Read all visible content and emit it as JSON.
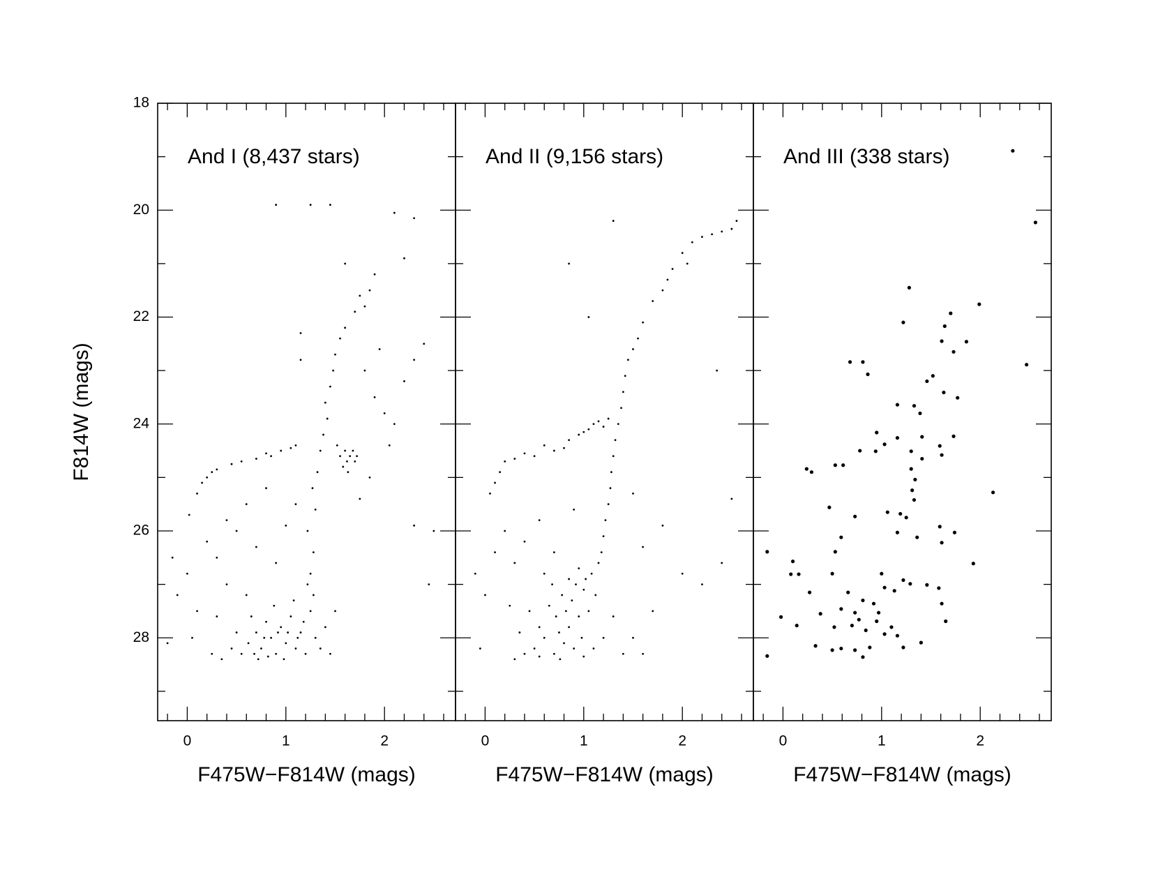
{
  "chart_data": [
    {
      "type": "scatter",
      "title": "And I (8,437 stars)",
      "x_label": "F475W−F814W (mags)",
      "y_label": "F814W (mags)",
      "xlim": [
        -0.3,
        2.72
      ],
      "ylim": [
        18,
        29.55
      ],
      "y_reversed": true,
      "xticks": [
        0,
        1,
        2
      ],
      "xticks_minor": [
        -0.2,
        0.2,
        0.4,
        0.6,
        0.8,
        1.2,
        1.4,
        1.6,
        1.8,
        2.2,
        2.4,
        2.6
      ],
      "yticks": [
        18,
        20,
        22,
        24,
        26,
        28
      ],
      "yticks_minor": [
        19,
        21,
        23,
        25,
        27,
        29
      ],
      "show_ytick_labels": true,
      "color": "#000000",
      "marker_size": 1.4,
      "x": [
        0.55,
        0.62,
        0.7,
        0.75,
        0.8,
        0.85,
        0.9,
        0.95,
        1.0,
        1.05,
        1.1,
        1.15,
        1.2,
        1.25,
        1.3,
        0.65,
        0.72,
        0.88,
        0.98,
        1.08,
        1.18,
        1.35,
        1.4,
        0.5,
        0.45,
        0.35,
        0.3,
        0.92,
        1.02,
        0.78,
        1.12,
        0.68,
        0.82,
        1.28,
        1.22,
        0.6,
        0.4,
        1.45,
        1.5,
        0.25,
        1.25,
        1.28,
        1.22,
        1.3,
        1.27,
        1.32,
        1.35,
        1.38,
        1.42,
        1.4,
        1.45,
        1.48,
        1.5,
        1.55,
        1.6,
        1.7,
        1.8,
        1.85,
        1.9,
        1.75,
        1.55,
        1.6,
        1.62,
        1.65,
        1.58,
        1.68,
        1.7,
        1.52,
        1.63,
        1.72,
        0.1,
        0.15,
        0.2,
        0.25,
        0.3,
        0.45,
        0.55,
        0.7,
        0.8,
        0.85,
        0.95,
        1.05,
        1.1,
        0.02,
        1.8,
        1.9,
        2.0,
        2.1,
        2.2,
        2.3,
        2.4,
        1.95,
        2.05,
        1.85,
        1.75,
        2.3,
        2.5,
        2.45,
        -0.15,
        -0.1,
        0.0,
        0.1,
        0.2,
        0.3,
        0.4,
        0.5,
        0.6,
        0.7,
        0.8,
        0.9,
        1.0,
        1.1,
        -0.2,
        0.05,
        1.15,
        1.15,
        0.9,
        1.25,
        1.45,
        2.1,
        2.3,
        2.2,
        1.6
      ],
      "y": [
        28.3,
        28.1,
        27.9,
        28.2,
        27.7,
        28.0,
        28.3,
        27.8,
        28.1,
        27.6,
        28.2,
        27.9,
        28.3,
        27.5,
        28.0,
        27.6,
        28.4,
        27.4,
        28.4,
        27.3,
        27.7,
        28.2,
        27.8,
        27.9,
        28.2,
        28.4,
        27.6,
        27.9,
        27.9,
        28.0,
        28.0,
        28.3,
        28.35,
        27.2,
        27.0,
        27.2,
        27.0,
        28.3,
        27.5,
        28.3,
        26.8,
        26.4,
        26.0,
        25.6,
        25.2,
        24.9,
        24.5,
        24.2,
        23.9,
        23.6,
        23.3,
        23.0,
        22.7,
        22.4,
        22.2,
        21.9,
        21.8,
        21.5,
        21.2,
        21.6,
        24.6,
        24.5,
        24.7,
        24.6,
        24.8,
        24.5,
        24.7,
        24.4,
        24.9,
        24.6,
        25.3,
        25.1,
        25.0,
        24.9,
        24.85,
        24.75,
        24.7,
        24.65,
        24.55,
        24.6,
        24.5,
        24.45,
        24.4,
        25.7,
        23.0,
        23.5,
        23.8,
        24.0,
        23.2,
        22.8,
        22.5,
        22.6,
        24.4,
        25.0,
        25.4,
        25.9,
        26.0,
        27.0,
        26.5,
        27.2,
        26.8,
        27.5,
        26.2,
        26.5,
        25.8,
        26.0,
        25.5,
        26.3,
        25.2,
        26.6,
        25.9,
        25.5,
        28.1,
        28.0,
        22.8,
        22.3,
        19.9,
        19.9,
        19.9,
        20.05,
        20.15,
        20.9,
        21.0
      ]
    },
    {
      "type": "scatter",
      "title": "And II (9,156 stars)",
      "x_label": "F475W−F814W (mags)",
      "xlim": [
        -0.3,
        2.72
      ],
      "ylim": [
        18,
        29.55
      ],
      "y_reversed": true,
      "xticks": [
        0,
        1,
        2
      ],
      "xticks_minor": [
        -0.2,
        0.2,
        0.4,
        0.6,
        0.8,
        1.2,
        1.4,
        1.6,
        1.8,
        2.2,
        2.4,
        2.6
      ],
      "yticks": [
        18,
        20,
        22,
        24,
        26,
        28
      ],
      "yticks_minor": [
        19,
        21,
        23,
        25,
        27,
        29
      ],
      "show_ytick_labels": false,
      "color": "#000000",
      "marker_size": 1.4,
      "x": [
        0.5,
        0.55,
        0.6,
        0.65,
        0.7,
        0.72,
        0.75,
        0.78,
        0.8,
        0.82,
        0.85,
        0.88,
        0.9,
        0.92,
        0.95,
        0.98,
        1.0,
        1.02,
        1.05,
        1.08,
        1.1,
        1.12,
        1.15,
        0.45,
        0.4,
        0.35,
        0.6,
        0.68,
        0.85,
        0.95,
        1.2,
        1.3,
        1.4,
        1.5,
        0.3,
        0.55,
        0.76,
        1.0,
        0.25,
        1.6,
        1.18,
        1.2,
        1.22,
        1.25,
        1.27,
        1.28,
        1.3,
        1.32,
        1.35,
        1.38,
        1.4,
        1.42,
        1.45,
        1.5,
        1.55,
        1.6,
        1.7,
        1.8,
        1.9,
        2.0,
        2.1,
        2.2,
        2.3,
        2.4,
        2.5,
        2.55,
        1.85,
        2.05,
        1.1,
        1.15,
        1.2,
        1.05,
        1.0,
        0.95,
        0.85,
        1.25,
        0.8,
        0.7,
        0.6,
        0.5,
        0.4,
        0.3,
        0.2,
        0.15,
        0.1,
        0.05,
        -0.1,
        0.0,
        0.1,
        0.2,
        0.3,
        0.4,
        0.55,
        0.7,
        0.9,
        1.6,
        1.8,
        2.0,
        2.2,
        2.4,
        1.7,
        2.5,
        1.05,
        0.85,
        1.3,
        2.35,
        1.5,
        -0.05
      ],
      "y": [
        28.2,
        27.8,
        28.0,
        27.4,
        28.3,
        27.6,
        27.9,
        27.2,
        28.1,
        27.5,
        27.8,
        27.3,
        28.2,
        27.0,
        27.6,
        28.0,
        27.1,
        26.9,
        27.5,
        26.8,
        28.2,
        27.2,
        26.6,
        27.5,
        28.3,
        27.9,
        26.8,
        27.0,
        26.9,
        26.7,
        28.0,
        27.6,
        28.3,
        28.0,
        28.4,
        28.35,
        28.4,
        28.35,
        27.4,
        28.3,
        26.4,
        26.1,
        25.8,
        25.5,
        25.2,
        24.9,
        24.6,
        24.3,
        24.0,
        23.7,
        23.4,
        23.1,
        22.8,
        22.6,
        22.4,
        22.1,
        21.7,
        21.5,
        21.1,
        20.8,
        20.6,
        20.5,
        20.45,
        20.4,
        20.35,
        20.2,
        21.3,
        21.0,
        24.0,
        23.95,
        24.05,
        24.1,
        24.15,
        24.2,
        24.3,
        23.9,
        24.45,
        24.5,
        24.4,
        24.6,
        24.55,
        24.65,
        24.7,
        24.9,
        25.1,
        25.3,
        26.8,
        27.2,
        26.4,
        26.0,
        26.6,
        26.2,
        25.8,
        26.4,
        25.6,
        26.3,
        25.9,
        26.8,
        27.0,
        26.6,
        27.5,
        25.4,
        22.0,
        21.0,
        20.2,
        23.0,
        25.3,
        28.2
      ]
    },
    {
      "type": "scatter",
      "title": "And III (338 stars)",
      "x_label": "F475W−F814W (mags)",
      "xlim": [
        -0.3,
        2.72
      ],
      "ylim": [
        18,
        29.55
      ],
      "y_reversed": true,
      "xticks": [
        0,
        1,
        2
      ],
      "xticks_minor": [
        -0.2,
        0.2,
        0.4,
        0.6,
        0.8,
        1.2,
        1.4,
        1.6,
        1.8,
        2.2,
        2.4,
        2.6
      ],
      "yticks": [
        18,
        20,
        22,
        24,
        26,
        28
      ],
      "yticks_minor": [
        19,
        21,
        23,
        25,
        27,
        29
      ],
      "show_ytick_labels": false,
      "color": "#000000",
      "marker_size": 2.6,
      "x": [
        2.33,
        2.56,
        1.28,
        1.99,
        1.22,
        1.7,
        1.64,
        1.61,
        1.86,
        1.73,
        2.47,
        0.68,
        0.81,
        0.86,
        1.52,
        1.46,
        1.63,
        1.77,
        1.16,
        1.33,
        1.39,
        0.95,
        1.16,
        1.41,
        1.73,
        1.03,
        0.94,
        0.78,
        1.59,
        1.61,
        1.3,
        1.41,
        0.24,
        0.29,
        0.53,
        0.61,
        1.3,
        1.34,
        1.31,
        1.33,
        2.13,
        0.47,
        0.73,
        1.06,
        1.19,
        1.25,
        1.16,
        1.36,
        1.59,
        1.74,
        0.59,
        0.53,
        1.61,
        -0.16,
        0.1,
        1.93,
        0.16,
        0.08,
        0.27,
        0.5,
        1.0,
        1.03,
        1.13,
        1.22,
        1.29,
        1.46,
        1.58,
        0.66,
        0.81,
        0.92,
        0.97,
        0.73,
        0.59,
        0.38,
        1.61,
        1.65,
        -0.02,
        0.14,
        0.52,
        0.7,
        0.84,
        1.03,
        1.16,
        1.4,
        0.33,
        0.5,
        0.59,
        0.73,
        0.81,
        1.22,
        -0.16,
        0.88,
        1.1,
        0.77,
        0.95
      ],
      "y": [
        18.89,
        20.23,
        21.45,
        21.76,
        22.1,
        21.93,
        22.17,
        22.45,
        22.46,
        22.65,
        22.89,
        22.84,
        22.84,
        23.07,
        23.1,
        23.2,
        23.41,
        23.51,
        23.64,
        23.66,
        23.8,
        24.16,
        24.26,
        24.24,
        24.23,
        24.38,
        24.51,
        24.5,
        24.41,
        24.58,
        24.51,
        24.65,
        24.84,
        24.9,
        24.77,
        24.77,
        24.84,
        25.04,
        25.24,
        25.42,
        25.28,
        25.56,
        25.73,
        25.65,
        25.68,
        25.75,
        26.03,
        26.12,
        25.92,
        26.03,
        26.12,
        26.39,
        26.22,
        26.39,
        26.57,
        26.61,
        26.81,
        26.81,
        27.15,
        26.8,
        26.8,
        27.06,
        27.12,
        26.92,
        26.99,
        27.01,
        27.07,
        27.15,
        27.3,
        27.36,
        27.53,
        27.53,
        27.46,
        27.55,
        27.36,
        27.69,
        27.61,
        27.77,
        27.8,
        27.77,
        27.86,
        27.93,
        27.96,
        28.09,
        28.15,
        28.23,
        28.2,
        28.23,
        28.36,
        28.18,
        28.34,
        28.18,
        27.8,
        27.66,
        27.69
      ]
    }
  ]
}
